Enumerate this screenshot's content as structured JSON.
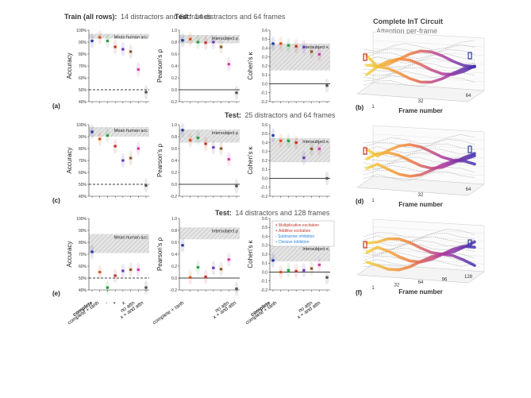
{
  "headers": {
    "col1_bold": "Train (all rows):",
    "col1_rest": "14 distractors and 64 frames",
    "row1_test_bold": "Test:",
    "row1_test_rest": "14 distractors and 64 frames",
    "row2_test_bold": "Test:",
    "row2_test_rest": "25 distractors and 64 frames",
    "row3_test_bold": "Test:",
    "row3_test_rest": "14 distractors and 128 frames",
    "circuit_title": "Complete InT Circuit",
    "circuit_subtitle": "Attention per-frame"
  },
  "axes": {
    "accuracy_label": "Accuracy",
    "pearson_label": "Pearson's ρ",
    "kappa_label": "Cohen's κ",
    "frame_label": "Frame number",
    "acc_ticks": [
      "40%",
      "50%",
      "60%",
      "70%",
      "80%",
      "90%",
      "100%"
    ],
    "rho_ticks": [
      "-0.2",
      "0.0",
      "0.2",
      "0.4",
      "0.6",
      "0.8",
      "1.0"
    ],
    "kappa_ticks": [
      "-0.2",
      "-0.1",
      "0.0",
      "0.1",
      "0.2",
      "0.3",
      "0.4",
      "0.5",
      "0.6"
    ],
    "frame_ticks_64": [
      "1",
      "32",
      "64"
    ],
    "frame_ticks_128": [
      "1",
      "32",
      "64",
      "96",
      "128"
    ]
  },
  "bands": {
    "acc": "Mean human acc",
    "rho": "Intersubject ρ",
    "kappa": "Intersubject κ"
  },
  "panel_labels": [
    "(a)",
    "(b)",
    "(c)",
    "(d)",
    "(e)",
    "(f)"
  ],
  "categories": {
    "c1": "complete",
    "c2": "complete + tanh",
    "c3": "-",
    "c4": "+",
    "c5": "x",
    "c6": "no attn",
    "c7": "x + and attn"
  },
  "legend": {
    "l1": "x  Multiplicative excitation",
    "l2": "+  Additive excitation",
    "l3": "-  Subtractive inhibition",
    "l4": "÷  Divisive inhibition",
    "colors": [
      "#c0392b",
      "#c0392b",
      "#2e86de",
      "#2e86de"
    ]
  },
  "colors": {
    "series": [
      "#2a3a9e",
      "#d4521f",
      "#2e9e3e",
      "#c0392b",
      "#6a3fb5",
      "#8b5a2b",
      "#d63aa6",
      "#555555"
    ],
    "band": "#d8d8d8"
  },
  "chart_data": [
    {
      "type": "scatter",
      "panel": "a",
      "metric": "accuracy",
      "ylim": [
        40,
        100
      ],
      "values": [
        91,
        94,
        91,
        86,
        84,
        82,
        67,
        48
      ],
      "band": [
        93,
        97
      ]
    },
    {
      "type": "scatter",
      "panel": "a",
      "metric": "pearson",
      "ylim": [
        -0.2,
        1.0
      ],
      "values": [
        0.83,
        0.85,
        0.8,
        0.79,
        0.8,
        0.72,
        0.43,
        -0.05
      ],
      "band": [
        0.78,
        0.92
      ]
    },
    {
      "type": "scatter",
      "panel": "a",
      "metric": "kappa",
      "ylim": [
        -0.2,
        0.6
      ],
      "values": [
        0.45,
        0.45,
        0.43,
        0.42,
        0.41,
        0.36,
        0.33,
        -0.02
      ],
      "band": [
        0.15,
        0.45
      ]
    },
    {
      "type": "scatter",
      "panel": "c",
      "metric": "accuracy",
      "ylim": [
        40,
        100
      ],
      "values": [
        94,
        88,
        91,
        82,
        70,
        72,
        80,
        49
      ],
      "band": [
        90,
        98
      ]
    },
    {
      "type": "scatter",
      "panel": "c",
      "metric": "pearson",
      "ylim": [
        -0.2,
        1.0
      ],
      "values": [
        0.91,
        0.74,
        0.78,
        0.68,
        0.62,
        0.6,
        0.42,
        -0.03
      ],
      "band": [
        0.7,
        0.92
      ]
    },
    {
      "type": "scatter",
      "panel": "c",
      "metric": "kappa",
      "ylim": [
        -0.2,
        0.6
      ],
      "values": [
        0.48,
        0.42,
        0.42,
        0.4,
        0.23,
        0.33,
        0.33,
        0.0
      ],
      "band": [
        0.18,
        0.45
      ]
    },
    {
      "type": "scatter",
      "panel": "e",
      "metric": "accuracy",
      "ylim": [
        40,
        100
      ],
      "values": [
        72,
        55,
        42,
        52,
        56,
        57,
        57,
        42
      ],
      "band": [
        71,
        87
      ]
    },
    {
      "type": "scatter",
      "panel": "e",
      "metric": "pearson",
      "ylim": [
        -0.2,
        1.0
      ],
      "values": [
        0.55,
        0.01,
        0.18,
        0.02,
        0.17,
        0.15,
        0.31,
        -0.18
      ],
      "band": [
        0.65,
        0.85
      ]
    },
    {
      "type": "scatter",
      "panel": "e",
      "metric": "kappa",
      "ylim": [
        -0.2,
        0.6
      ],
      "values": [
        0.13,
        0.0,
        0.02,
        0.01,
        0.02,
        0.04,
        0.08,
        -0.06
      ],
      "band": [
        0.12,
        0.3
      ]
    }
  ]
}
